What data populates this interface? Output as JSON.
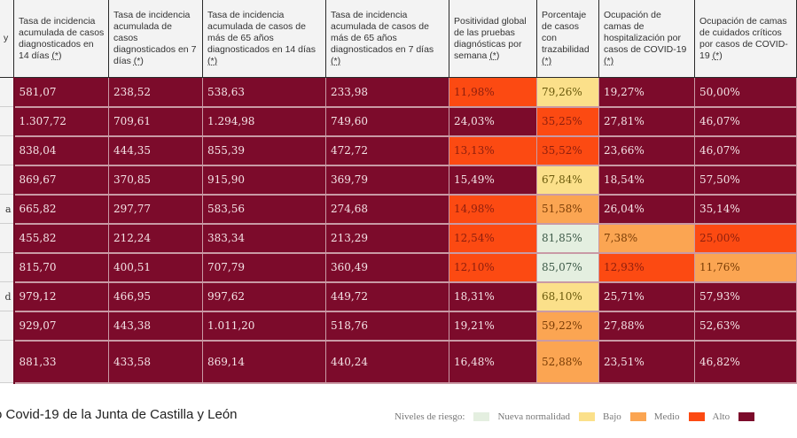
{
  "table": {
    "columns": [
      {
        "label": "Tasa de incidencia acumulada de casos diagnosticados en 14 días",
        "note": "(*)"
      },
      {
        "label": "Tasa de incidencia acumulada de casos diagnosticados en 7 días",
        "note": "(*)"
      },
      {
        "label": "Tasa de incidencia acumulada de casos de más de 65 años diagnosticados en 14 días",
        "note": "(*)"
      },
      {
        "label": "Tasa de incidencia acumulada de casos de más de 65 años diagnosticados en 7 días",
        "note": "(*)"
      },
      {
        "label": "Positividad global de las pruebas diagnósticas por semana",
        "note": "(*)"
      },
      {
        "label": "Porcentaje de casos con trazabilidad",
        "note": "(*)"
      },
      {
        "label": "Ocupación de camas de hospitalización por casos de COVID-19",
        "note": "(*)"
      },
      {
        "label": "Ocupación de camas de cuidados críticos por casos de COVID-19",
        "note": "(*)"
      }
    ],
    "header_stub": "y",
    "rows": [
      {
        "label": "",
        "cells": [
          {
            "v": "581,07",
            "lvl": "muy"
          },
          {
            "v": "238,52",
            "lvl": "muy"
          },
          {
            "v": "538,63",
            "lvl": "muy"
          },
          {
            "v": "233,98",
            "lvl": "muy"
          },
          {
            "v": "11,98%",
            "lvl": "alto"
          },
          {
            "v": "79,26%",
            "lvl": "bajo"
          },
          {
            "v": "19,27%",
            "lvl": "muy"
          },
          {
            "v": "50,00%",
            "lvl": "muy"
          }
        ]
      },
      {
        "label": "",
        "cells": [
          {
            "v": "1.307,72",
            "lvl": "muy"
          },
          {
            "v": "709,61",
            "lvl": "muy"
          },
          {
            "v": "1.294,98",
            "lvl": "muy"
          },
          {
            "v": "749,60",
            "lvl": "muy"
          },
          {
            "v": "24,03%",
            "lvl": "muy"
          },
          {
            "v": "35,25%",
            "lvl": "alto"
          },
          {
            "v": "27,81%",
            "lvl": "muy"
          },
          {
            "v": "46,07%",
            "lvl": "muy"
          }
        ]
      },
      {
        "label": "",
        "cells": [
          {
            "v": "838,04",
            "lvl": "muy"
          },
          {
            "v": "444,35",
            "lvl": "muy"
          },
          {
            "v": "855,39",
            "lvl": "muy"
          },
          {
            "v": "472,72",
            "lvl": "muy"
          },
          {
            "v": "13,13%",
            "lvl": "alto"
          },
          {
            "v": "35,52%",
            "lvl": "alto"
          },
          {
            "v": "23,66%",
            "lvl": "muy"
          },
          {
            "v": "46,07%",
            "lvl": "muy"
          }
        ]
      },
      {
        "label": "",
        "cells": [
          {
            "v": "869,67",
            "lvl": "muy"
          },
          {
            "v": "370,85",
            "lvl": "muy"
          },
          {
            "v": "915,90",
            "lvl": "muy"
          },
          {
            "v": "369,79",
            "lvl": "muy"
          },
          {
            "v": "15,49%",
            "lvl": "muy"
          },
          {
            "v": "67,84%",
            "lvl": "bajo"
          },
          {
            "v": "18,54%",
            "lvl": "muy"
          },
          {
            "v": "57,50%",
            "lvl": "muy"
          }
        ]
      },
      {
        "label": "a",
        "cells": [
          {
            "v": "665,82",
            "lvl": "muy"
          },
          {
            "v": "297,77",
            "lvl": "muy"
          },
          {
            "v": "583,56",
            "lvl": "muy"
          },
          {
            "v": "274,68",
            "lvl": "muy"
          },
          {
            "v": "14,98%",
            "lvl": "alto"
          },
          {
            "v": "51,58%",
            "lvl": "medio"
          },
          {
            "v": "26,04%",
            "lvl": "muy"
          },
          {
            "v": "35,14%",
            "lvl": "muy"
          }
        ]
      },
      {
        "label": "",
        "cells": [
          {
            "v": "455,82",
            "lvl": "muy"
          },
          {
            "v": "212,24",
            "lvl": "muy"
          },
          {
            "v": "383,34",
            "lvl": "muy"
          },
          {
            "v": "213,29",
            "lvl": "muy"
          },
          {
            "v": "12,54%",
            "lvl": "alto"
          },
          {
            "v": "81,85%",
            "lvl": "nueva"
          },
          {
            "v": "7,38%",
            "lvl": "medio"
          },
          {
            "v": "25,00%",
            "lvl": "alto"
          }
        ]
      },
      {
        "label": "",
        "cells": [
          {
            "v": "815,70",
            "lvl": "muy"
          },
          {
            "v": "400,51",
            "lvl": "muy"
          },
          {
            "v": "707,79",
            "lvl": "muy"
          },
          {
            "v": "360,49",
            "lvl": "muy"
          },
          {
            "v": "12,10%",
            "lvl": "alto"
          },
          {
            "v": "85,07%",
            "lvl": "nueva"
          },
          {
            "v": "12,93%",
            "lvl": "alto"
          },
          {
            "v": "11,76%",
            "lvl": "medio"
          }
        ]
      },
      {
        "label": "d",
        "cells": [
          {
            "v": "979,12",
            "lvl": "muy"
          },
          {
            "v": "466,95",
            "lvl": "muy"
          },
          {
            "v": "997,62",
            "lvl": "muy"
          },
          {
            "v": "449,72",
            "lvl": "muy"
          },
          {
            "v": "18,31%",
            "lvl": "muy"
          },
          {
            "v": "68,10%",
            "lvl": "bajo"
          },
          {
            "v": "25,71%",
            "lvl": "muy"
          },
          {
            "v": "57,93%",
            "lvl": "muy"
          }
        ]
      },
      {
        "label": "",
        "cells": [
          {
            "v": "929,07",
            "lvl": "muy"
          },
          {
            "v": "443,38",
            "lvl": "muy"
          },
          {
            "v": "1.011,20",
            "lvl": "muy"
          },
          {
            "v": "518,76",
            "lvl": "muy"
          },
          {
            "v": "19,21%",
            "lvl": "muy"
          },
          {
            "v": "59,22%",
            "lvl": "medio"
          },
          {
            "v": "27,88%",
            "lvl": "muy"
          },
          {
            "v": "52,63%",
            "lvl": "muy"
          }
        ]
      },
      {
        "label": "",
        "tall": true,
        "cells": [
          {
            "v": "881,33",
            "lvl": "muy"
          },
          {
            "v": "433,58",
            "lvl": "muy"
          },
          {
            "v": "869,14",
            "lvl": "muy"
          },
          {
            "v": "440,24",
            "lvl": "muy"
          },
          {
            "v": "16,48%",
            "lvl": "muy"
          },
          {
            "v": "52,88%",
            "lvl": "medio"
          },
          {
            "v": "23,51%",
            "lvl": "muy"
          },
          {
            "v": "46,82%",
            "lvl": "muy"
          }
        ]
      }
    ]
  },
  "footer": {
    "source": "o Covid-19 de la Junta de Castilla y León"
  },
  "legend": {
    "title": "Niveles de riesgo:",
    "items": [
      {
        "label": "Nueva normalidad",
        "color": "#e4efe0"
      },
      {
        "label": "Bajo",
        "color": "#fbe08a"
      },
      {
        "label": "Medio",
        "color": "#fba552"
      },
      {
        "label": "Alto",
        "color": "#fc4a12"
      },
      {
        "label": "",
        "color": "#7c0b2b"
      }
    ]
  },
  "colors": {
    "muy_alto": "#7c0b2b",
    "alto": "#fc4a12",
    "medio": "#fba552",
    "bajo": "#fbe08a",
    "nueva_normalidad": "#e4efe0"
  }
}
